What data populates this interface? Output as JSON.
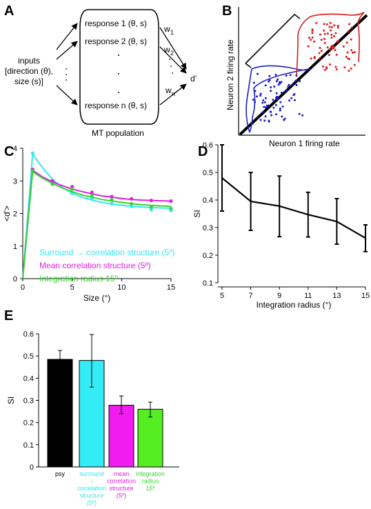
{
  "panels": {
    "A": {
      "label": "A",
      "inputs_lines": [
        "inputs",
        "[direction (θ),",
        "size (s)]"
      ],
      "responses": [
        "response 1 (θ, s)",
        "response 2 (θ, s)",
        "response n (θ, s)"
      ],
      "weights": [
        "w",
        "w",
        "w"
      ],
      "weight_subs": [
        "1",
        "2",
        "n"
      ],
      "output": "d’",
      "population_label": "MT population"
    },
    "B": {
      "label": "B",
      "xlabel": "Neuron 1 firing rate",
      "ylabel": "Neuron 2 firing rate"
    },
    "C": {
      "label": "C"
    },
    "D": {
      "label": "D"
    },
    "E": {
      "label": "E"
    }
  },
  "chart_data": [
    {
      "panel": "C",
      "type": "line",
      "xlabel": "Size (°)",
      "ylabel": "<d'>",
      "xlim": [
        0,
        15
      ],
      "ylim": [
        0,
        4
      ],
      "xticks": [
        0,
        5,
        10,
        15
      ],
      "yticks": [
        0,
        1,
        2,
        3,
        4
      ],
      "series": [
        {
          "name": "Surround → correlation structure (5º)",
          "color": "#33e6f0",
          "points_x": [
            1,
            3,
            5,
            7,
            9,
            11,
            13,
            15
          ],
          "points_y": [
            3.85,
            2.95,
            2.62,
            2.45,
            2.3,
            2.22,
            2.12,
            2.1
          ],
          "curve_x": [
            0,
            1,
            2,
            3,
            4,
            5,
            6,
            7,
            8,
            9,
            10,
            11,
            12,
            13,
            14,
            15
          ],
          "curve_y": [
            0,
            3.82,
            3.4,
            3.05,
            2.8,
            2.62,
            2.5,
            2.41,
            2.34,
            2.29,
            2.25,
            2.22,
            2.2,
            2.18,
            2.17,
            2.16
          ]
        },
        {
          "name": "Mean correlation structure (5º)",
          "color": "#e020e0",
          "points_x": [
            1,
            3,
            5,
            7,
            9,
            11,
            13,
            15
          ],
          "points_y": [
            3.35,
            3.0,
            2.82,
            2.65,
            2.52,
            2.45,
            2.4,
            2.38
          ],
          "curve_x": [
            0,
            1,
            2,
            3,
            4,
            5,
            6,
            7,
            8,
            9,
            10,
            11,
            12,
            13,
            14,
            15
          ],
          "curve_y": [
            0,
            3.33,
            3.12,
            2.97,
            2.85,
            2.75,
            2.67,
            2.6,
            2.54,
            2.5,
            2.46,
            2.43,
            2.41,
            2.4,
            2.39,
            2.38
          ]
        },
        {
          "name": "Integration radius 15º",
          "color": "#33d633",
          "points_x": [
            1,
            3,
            5,
            7,
            9,
            11,
            13,
            15
          ],
          "points_y": [
            3.3,
            2.9,
            2.75,
            2.55,
            2.42,
            2.3,
            2.2,
            2.15
          ],
          "curve_x": [
            0,
            1,
            2,
            3,
            4,
            5,
            6,
            7,
            8,
            9,
            10,
            11,
            12,
            13,
            14,
            15
          ],
          "curve_y": [
            0,
            3.28,
            3.08,
            2.92,
            2.78,
            2.67,
            2.57,
            2.5,
            2.43,
            2.38,
            2.34,
            2.3,
            2.27,
            2.25,
            2.23,
            2.22
          ]
        }
      ]
    },
    {
      "panel": "D",
      "type": "line",
      "xlabel": "Integration radius (°)",
      "ylabel": "SI",
      "xlim": [
        5,
        15
      ],
      "ylim": [
        0.1,
        0.6
      ],
      "xticks": [
        5,
        7,
        9,
        11,
        13,
        15
      ],
      "yticks": [
        0.1,
        0.2,
        0.3,
        0.4,
        0.5,
        0.6
      ],
      "x": [
        5,
        7,
        9,
        11,
        13,
        15
      ],
      "y": [
        0.48,
        0.395,
        0.378,
        0.347,
        0.322,
        0.262
      ],
      "err_low": [
        0.36,
        0.29,
        0.267,
        0.266,
        0.24,
        0.213
      ],
      "err_high": [
        0.6,
        0.5,
        0.487,
        0.428,
        0.405,
        0.31
      ]
    },
    {
      "panel": "E",
      "type": "bar",
      "ylabel": "SI",
      "ylim": [
        0,
        0.6
      ],
      "yticks": [
        0,
        0.1,
        0.2,
        0.3,
        0.4,
        0.5,
        0.6
      ],
      "categories": [
        [
          "psy"
        ],
        [
          "surround",
          "↓",
          "correlation",
          "structure",
          "(5º)"
        ],
        [
          "mean",
          "correlation",
          "structure",
          "(5º)"
        ],
        [
          "integration",
          "radius",
          "15º"
        ]
      ],
      "category_colors": [
        "#000000",
        "#33e6f0",
        "#e020e0",
        "#33d633"
      ],
      "values": [
        0.485,
        0.48,
        0.278,
        0.26
      ],
      "err_low": [
        0.445,
        0.36,
        0.24,
        0.225
      ],
      "err_high": [
        0.525,
        0.597,
        0.32,
        0.292
      ],
      "bar_colors": [
        "#000000",
        "#33ecf6",
        "#f01cf0",
        "#55ee22"
      ]
    }
  ]
}
